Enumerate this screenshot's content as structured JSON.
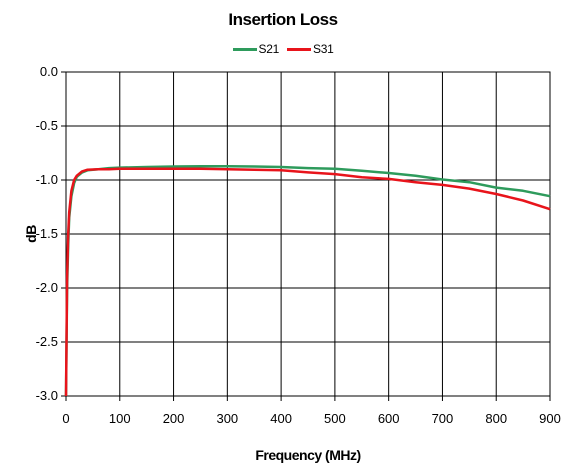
{
  "chart_data": {
    "type": "line",
    "title": "Insertion Loss",
    "xlabel": "Frequency (MHz)",
    "ylabel": "dB",
    "xlim": [
      0,
      900
    ],
    "ylim": [
      -3.0,
      0.0
    ],
    "x_ticks": [
      0,
      100,
      200,
      300,
      400,
      500,
      600,
      700,
      800,
      900
    ],
    "y_ticks": [
      0.0,
      -0.5,
      -1.0,
      -1.5,
      -2.0,
      -2.5,
      -3.0
    ],
    "x_tick_labels": [
      "0",
      "100",
      "200",
      "300",
      "400",
      "500",
      "600",
      "700",
      "800",
      "900"
    ],
    "y_tick_labels": [
      "0.0",
      "-0.5",
      "-1.0",
      "-1.5",
      "-2.0",
      "-2.5",
      "-3.0"
    ],
    "grid": true,
    "legend_position": "top-center",
    "series": [
      {
        "name": "S21",
        "color": "#2e9b5c",
        "points": [
          [
            0,
            -3.0
          ],
          [
            2,
            -2.0
          ],
          [
            4,
            -1.6
          ],
          [
            6,
            -1.35
          ],
          [
            10,
            -1.15
          ],
          [
            15,
            -1.03
          ],
          [
            20,
            -0.97
          ],
          [
            30,
            -0.93
          ],
          [
            40,
            -0.91
          ],
          [
            60,
            -0.9
          ],
          [
            80,
            -0.89
          ],
          [
            100,
            -0.885
          ],
          [
            150,
            -0.88
          ],
          [
            200,
            -0.875
          ],
          [
            250,
            -0.873
          ],
          [
            300,
            -0.872
          ],
          [
            350,
            -0.875
          ],
          [
            400,
            -0.88
          ],
          [
            450,
            -0.89
          ],
          [
            500,
            -0.895
          ],
          [
            550,
            -0.915
          ],
          [
            600,
            -0.935
          ],
          [
            650,
            -0.96
          ],
          [
            700,
            -0.995
          ],
          [
            750,
            -1.02
          ],
          [
            800,
            -1.07
          ],
          [
            850,
            -1.1
          ],
          [
            900,
            -1.15
          ]
        ]
      },
      {
        "name": "S31",
        "color": "#e8141b",
        "points": [
          [
            0,
            -3.0
          ],
          [
            2,
            -1.9
          ],
          [
            4,
            -1.5
          ],
          [
            6,
            -1.3
          ],
          [
            10,
            -1.1
          ],
          [
            15,
            -1.0
          ],
          [
            20,
            -0.96
          ],
          [
            30,
            -0.92
          ],
          [
            40,
            -0.905
          ],
          [
            60,
            -0.9
          ],
          [
            80,
            -0.9
          ],
          [
            100,
            -0.895
          ],
          [
            150,
            -0.895
          ],
          [
            200,
            -0.895
          ],
          [
            250,
            -0.895
          ],
          [
            300,
            -0.9
          ],
          [
            350,
            -0.905
          ],
          [
            400,
            -0.91
          ],
          [
            450,
            -0.93
          ],
          [
            500,
            -0.945
          ],
          [
            550,
            -0.975
          ],
          [
            600,
            -0.99
          ],
          [
            650,
            -1.02
          ],
          [
            700,
            -1.045
          ],
          [
            750,
            -1.08
          ],
          [
            800,
            -1.13
          ],
          [
            850,
            -1.19
          ],
          [
            900,
            -1.27
          ]
        ]
      }
    ]
  }
}
